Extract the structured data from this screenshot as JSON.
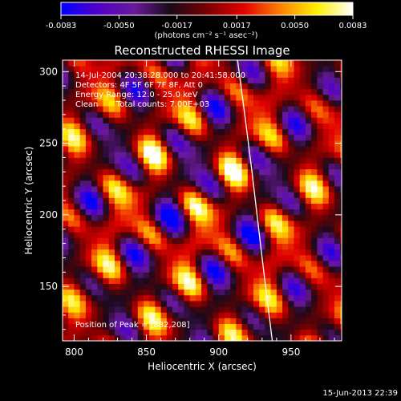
{
  "chart_data": {
    "type": "heatmap",
    "title": "Reconstructed RHESSI Image",
    "xlabel": "Heliocentric X (arcsec)",
    "ylabel": "Heliocentric Y (arcsec)",
    "xlim": [
      792,
      985
    ],
    "ylim": [
      112,
      308
    ],
    "x_ticks": [
      800,
      850,
      900,
      950
    ],
    "y_ticks": [
      150,
      200,
      250,
      300
    ],
    "colorbar": {
      "min": -0.0083,
      "max": 0.0083,
      "tick_values": [
        -0.0083,
        -0.005,
        -0.0017,
        0.0017,
        0.005,
        0.0083
      ],
      "tick_labels": [
        "-0.0083",
        "-0.0050",
        "-0.0017",
        "0.0017",
        "0.0050",
        "0.0083"
      ],
      "unit_label": "(photons cm⁻² s⁻¹ asec⁻²)",
      "colormap": [
        "#0000ff",
        "#4f00c8",
        "#6a1a9a",
        "#1a0a1a",
        "#7a0000",
        "#e00000",
        "#ff8000",
        "#ffee00",
        "#ffffff"
      ]
    },
    "annotations": {
      "time_range": "14-Jul-2004 20:38:28.000 to 20:41:58.000",
      "detectors": "Detectors: 4F 5F 6F 7F 8F, Att 0",
      "energy_range": "Energy Range: 12.0 - 25.0 keV",
      "clean": "Clean",
      "total_counts": "Total counts: 7.00E+03",
      "peak": "Position of Peak = [882,208]"
    },
    "peak": {
      "x": 882,
      "y": 208
    },
    "limb_curve": {
      "x": [
        913,
        918,
        923,
        930,
        937
      ],
      "y": [
        308,
        270,
        230,
        170,
        112
      ]
    },
    "grid": false
  },
  "footer": {
    "date": "15-Jun-2013 22:39"
  }
}
